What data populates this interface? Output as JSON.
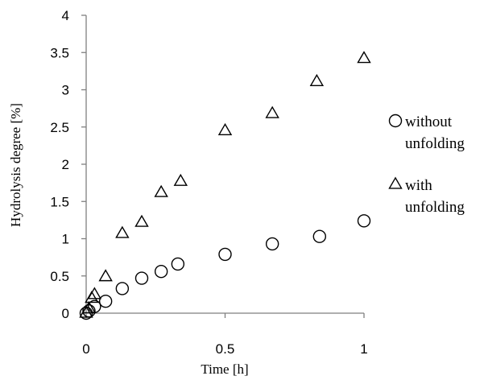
{
  "chart_data": {
    "type": "scatter",
    "title": "",
    "xlabel": "Time [h]",
    "ylabel": "Hydrolysis degree  [%]",
    "xlim": [
      0,
      1
    ],
    "ylim": [
      0,
      4
    ],
    "x_ticks": [
      "0",
      "0.5",
      "1"
    ],
    "y_ticks": [
      "0",
      "0.5",
      "1",
      "1.5",
      "2",
      "2.5",
      "3",
      "3.5",
      "4"
    ],
    "grid": false,
    "legend_position": "right",
    "series": [
      {
        "name_lines": [
          "without",
          "unfolding"
        ],
        "marker": "circle",
        "x": [
          0,
          0.01,
          0.03,
          0.07,
          0.13,
          0.2,
          0.27,
          0.33,
          0.5,
          0.67,
          0.84,
          1.0
        ],
        "y": [
          0.0,
          0.03,
          0.09,
          0.16,
          0.33,
          0.47,
          0.56,
          0.66,
          0.79,
          0.93,
          1.03,
          1.24
        ]
      },
      {
        "name_lines": [
          "with",
          "unfolding"
        ],
        "marker": "triangle",
        "x": [
          0,
          0.01,
          0.02,
          0.03,
          0.07,
          0.13,
          0.2,
          0.27,
          0.34,
          0.5,
          0.67,
          0.83,
          1.0
        ],
        "y": [
          0.0,
          0.06,
          0.2,
          0.25,
          0.49,
          1.07,
          1.22,
          1.62,
          1.77,
          2.45,
          2.68,
          3.11,
          3.42
        ]
      }
    ]
  }
}
